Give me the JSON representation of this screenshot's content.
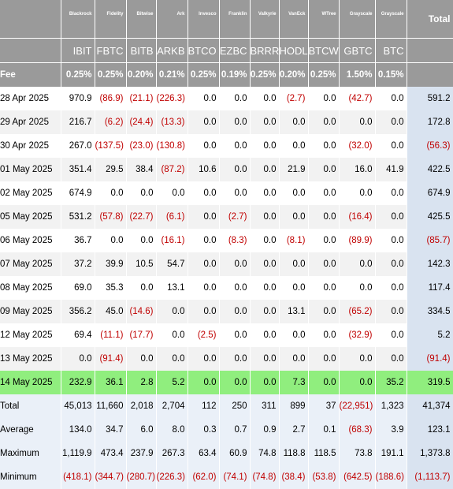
{
  "columns": [
    {
      "provider": "",
      "ticker": "",
      "fee": "Fee"
    },
    {
      "provider": "Blackrock",
      "ticker": "IBIT",
      "fee": "0.25%"
    },
    {
      "provider": "Fidelity",
      "ticker": "FBTC",
      "fee": "0.25%"
    },
    {
      "provider": "Bitwise",
      "ticker": "BITB",
      "fee": "0.20%"
    },
    {
      "provider": "Ark",
      "ticker": "ARKB",
      "fee": "0.21%"
    },
    {
      "provider": "Invesco",
      "ticker": "BTCO",
      "fee": "0.25%"
    },
    {
      "provider": "Franklin",
      "ticker": "EZBC",
      "fee": "0.19%"
    },
    {
      "provider": "Valkyrie",
      "ticker": "BRRR",
      "fee": "0.25%"
    },
    {
      "provider": "VanEck",
      "ticker": "HODL",
      "fee": "0.20%"
    },
    {
      "provider": "WTree",
      "ticker": "BTCW",
      "fee": "0.25%"
    },
    {
      "provider": "Grayscale",
      "ticker": "GBTC",
      "fee": "1.50%"
    },
    {
      "provider": "Grayscale",
      "ticker": "BTC",
      "fee": "0.15%"
    },
    {
      "provider": "Total",
      "ticker": "",
      "fee": ""
    }
  ],
  "rows": [
    {
      "date": "28 Apr 2025",
      "values": [
        "970.9",
        "(86.9)",
        "(21.1)",
        "(226.3)",
        "0.0",
        "0.0",
        "0.0",
        "(2.7)",
        "0.0",
        "(42.7)",
        "0.0",
        "591.2"
      ]
    },
    {
      "date": "29 Apr 2025",
      "values": [
        "216.7",
        "(6.2)",
        "(24.4)",
        "(13.3)",
        "0.0",
        "0.0",
        "0.0",
        "0.0",
        "0.0",
        "0.0",
        "0.0",
        "172.8"
      ]
    },
    {
      "date": "30 Apr 2025",
      "values": [
        "267.0",
        "(137.5)",
        "(23.0)",
        "(130.8)",
        "0.0",
        "0.0",
        "0.0",
        "0.0",
        "0.0",
        "(32.0)",
        "0.0",
        "(56.3)"
      ]
    },
    {
      "date": "01 May 2025",
      "values": [
        "351.4",
        "29.5",
        "38.4",
        "(87.2)",
        "10.6",
        "0.0",
        "0.0",
        "21.9",
        "0.0",
        "16.0",
        "41.9",
        "422.5"
      ]
    },
    {
      "date": "02 May 2025",
      "values": [
        "674.9",
        "0.0",
        "0.0",
        "0.0",
        "0.0",
        "0.0",
        "0.0",
        "0.0",
        "0.0",
        "0.0",
        "0.0",
        "674.9"
      ]
    },
    {
      "date": "05 May 2025",
      "values": [
        "531.2",
        "(57.8)",
        "(22.7)",
        "(6.1)",
        "0.0",
        "(2.7)",
        "0.0",
        "0.0",
        "0.0",
        "(16.4)",
        "0.0",
        "425.5"
      ]
    },
    {
      "date": "06 May 2025",
      "values": [
        "36.7",
        "0.0",
        "0.0",
        "(16.1)",
        "0.0",
        "(8.3)",
        "0.0",
        "(8.1)",
        "0.0",
        "(89.9)",
        "0.0",
        "(85.7)"
      ]
    },
    {
      "date": "07 May 2025",
      "values": [
        "37.2",
        "39.9",
        "10.5",
        "54.7",
        "0.0",
        "0.0",
        "0.0",
        "0.0",
        "0.0",
        "0.0",
        "0.0",
        "142.3"
      ]
    },
    {
      "date": "08 May 2025",
      "values": [
        "69.0",
        "35.3",
        "0.0",
        "13.1",
        "0.0",
        "0.0",
        "0.0",
        "0.0",
        "0.0",
        "0.0",
        "0.0",
        "117.4"
      ]
    },
    {
      "date": "09 May 2025",
      "values": [
        "356.2",
        "45.0",
        "(14.6)",
        "0.0",
        "0.0",
        "0.0",
        "0.0",
        "13.1",
        "0.0",
        "(65.2)",
        "0.0",
        "334.5"
      ]
    },
    {
      "date": "12 May 2025",
      "values": [
        "69.4",
        "(11.1)",
        "(17.7)",
        "0.0",
        "(2.5)",
        "0.0",
        "0.0",
        "0.0",
        "0.0",
        "(32.9)",
        "0.0",
        "5.2"
      ]
    },
    {
      "date": "13 May 2025",
      "values": [
        "0.0",
        "(91.4)",
        "0.0",
        "0.0",
        "0.0",
        "0.0",
        "0.0",
        "0.0",
        "0.0",
        "0.0",
        "0.0",
        "(91.4)"
      ]
    },
    {
      "date": "14 May 2025",
      "highlight": true,
      "values": [
        "232.9",
        "36.1",
        "2.8",
        "5.2",
        "0.0",
        "0.0",
        "0.0",
        "7.3",
        "0.0",
        "0.0",
        "35.2",
        "319.5"
      ]
    }
  ],
  "summary": [
    {
      "label": "Total",
      "values": [
        "45,013",
        "11,660",
        "2,018",
        "2,704",
        "112",
        "250",
        "311",
        "899",
        "37",
        "(22,951)",
        "1,323",
        "41,374"
      ]
    },
    {
      "label": "Average",
      "values": [
        "134.0",
        "34.7",
        "6.0",
        "8.0",
        "0.3",
        "0.7",
        "0.9",
        "2.7",
        "0.1",
        "(68.3)",
        "3.9",
        "123.1"
      ]
    },
    {
      "label": "Maximum",
      "values": [
        "1,119.9",
        "473.4",
        "237.9",
        "267.3",
        "63.4",
        "60.9",
        "74.8",
        "118.8",
        "118.5",
        "73.8",
        "191.1",
        "1,373.8"
      ]
    },
    {
      "label": "Minimum",
      "values": [
        "(418.1)",
        "(344.7)",
        "(280.7)",
        "(226.3)",
        "(62.0)",
        "(74.1)",
        "(74.8)",
        "(38.4)",
        "(53.8)",
        "(642.5)",
        "(188.6)",
        "(1,113.7)"
      ]
    }
  ],
  "colors": {
    "header_bg": "#9a9a9a",
    "negative": "#c00000",
    "highlight": "#90ee7e",
    "summary_bg": "#eaf0f8"
  }
}
